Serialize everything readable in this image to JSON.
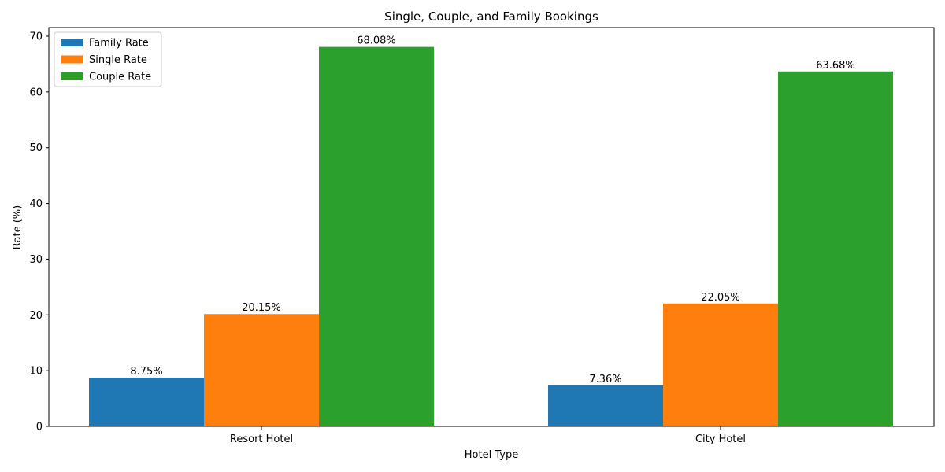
{
  "chart_data": {
    "type": "bar",
    "title": "Single, Couple, and Family Bookings",
    "xlabel": "Hotel Type",
    "ylabel": "Rate (%)",
    "ylim": [
      0,
      70
    ],
    "yticks": [
      0,
      10,
      20,
      30,
      40,
      50,
      60,
      70
    ],
    "categories": [
      "Resort Hotel",
      "City Hotel"
    ],
    "series": [
      {
        "name": "Family Rate",
        "values": [
          8.75,
          7.36
        ],
        "labels": [
          "8.75%",
          "7.36%"
        ],
        "color": "#1f77b4"
      },
      {
        "name": "Single Rate",
        "values": [
          20.15,
          22.05
        ],
        "labels": [
          "20.15%",
          "22.05%"
        ],
        "color": "#ff7f0e"
      },
      {
        "name": "Couple Rate",
        "values": [
          68.08,
          63.68
        ],
        "labels": [
          "68.08%",
          "63.68%"
        ],
        "color": "#2ca02c"
      }
    ],
    "legend": "top-left",
    "grid": false
  }
}
